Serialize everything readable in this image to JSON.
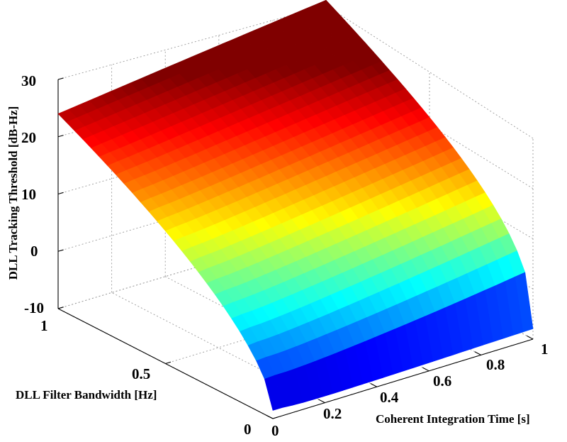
{
  "chart_data": {
    "type": "surface",
    "title": "",
    "xlabel": "Coherent Integration Time [s]",
    "ylabel": "DLL Filter Bandwidth [Hz]",
    "zlabel": "DLL Tracking Threshold [dB-Hz]",
    "xlim": [
      0,
      1
    ],
    "ylim": [
      0,
      1
    ],
    "zlim": [
      -10,
      30
    ],
    "x_ticks": [
      "0",
      "0.2",
      "0.4",
      "0.6",
      "0.8",
      "1"
    ],
    "y_ticks": [
      "0",
      "0.5",
      "1"
    ],
    "z_ticks": [
      "-10",
      "0",
      "10",
      "20",
      "30"
    ],
    "grid": true,
    "colormap": "jet",
    "surface_corners": [
      {
        "x": 0.0,
        "y": 1.0,
        "z": 24
      },
      {
        "x": 0.0,
        "y": 0.0,
        "z": -9
      },
      {
        "x": 1.0,
        "y": 0.0,
        "z": -8
      },
      {
        "x": 1.0,
        "y": 1.0,
        "z": 31
      }
    ],
    "colors": {
      "dark_red": "#7f0000",
      "red": "#ff0000",
      "orange": "#ff8000",
      "yellow": "#ffff00",
      "cyan": "#00ffff",
      "blue": "#0000ff",
      "dark_blue": "#00007f"
    }
  }
}
